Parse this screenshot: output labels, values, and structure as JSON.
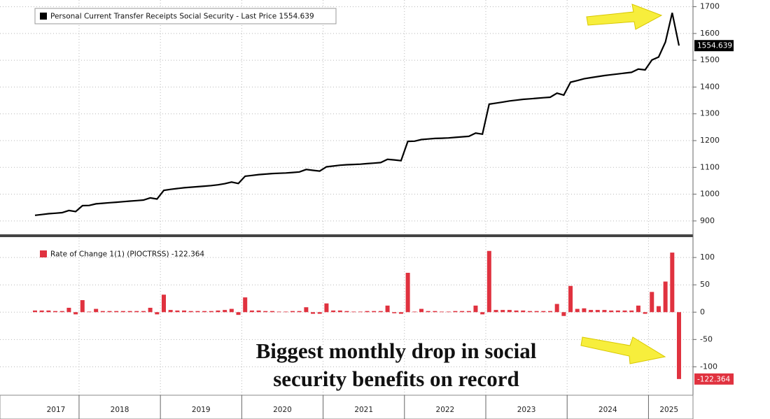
{
  "chart_data": [
    {
      "type": "line",
      "series": [
        {
          "name": "Personal Current Transfer Receipts Social Security - Last Price 1554.639",
          "color": "#000000",
          "values": [
            921,
            924,
            927,
            929,
            931,
            939,
            935,
            957,
            958,
            964,
            966,
            968,
            970,
            972,
            974,
            976,
            978,
            986,
            982,
            1014,
            1018,
            1021,
            1024,
            1026,
            1028,
            1030,
            1032,
            1035,
            1039,
            1045,
            1040,
            1067,
            1070,
            1073,
            1075,
            1077,
            1078,
            1079,
            1081,
            1083,
            1092,
            1089,
            1086,
            1102,
            1105,
            1108,
            1110,
            1111,
            1112,
            1114,
            1116,
            1118,
            1130,
            1128,
            1125,
            1197,
            1198,
            1204,
            1206,
            1208,
            1209,
            1210,
            1212,
            1214,
            1216,
            1228,
            1224,
            1336,
            1340,
            1344,
            1348,
            1351,
            1354,
            1356,
            1358,
            1360,
            1362,
            1377,
            1370,
            1418,
            1424,
            1431,
            1435,
            1439,
            1443,
            1446,
            1449,
            1452,
            1455,
            1467,
            1464,
            1501,
            1512,
            1568,
            1677,
            1554.639
          ]
        }
      ],
      "ylim": [
        850,
        1725
      ],
      "yticks": [
        900,
        1000,
        1100,
        1200,
        1300,
        1400,
        1500,
        1600,
        1700
      ],
      "grid": true
    },
    {
      "type": "bar",
      "series": [
        {
          "name": "Rate of Change 1(1) (PIOCTRSS) -122.364",
          "color": "#e0323f",
          "values": [
            3,
            3,
            3,
            2,
            2,
            8,
            -4,
            22,
            1,
            6,
            2,
            2,
            2,
            2,
            2,
            2,
            2,
            8,
            -4,
            32,
            4,
            3,
            3,
            2,
            2,
            2,
            2,
            3,
            4,
            6,
            -5,
            27,
            3,
            3,
            2,
            2,
            1,
            1,
            2,
            2,
            9,
            -3,
            -3,
            16,
            3,
            3,
            2,
            1,
            1,
            2,
            2,
            2,
            12,
            -2,
            -3,
            72,
            1,
            6,
            2,
            2,
            1,
            1,
            2,
            2,
            2,
            12,
            -4,
            112,
            4,
            4,
            4,
            3,
            3,
            2,
            2,
            2,
            2,
            15,
            -7,
            48,
            6,
            7,
            4,
            4,
            4,
            3,
            3,
            3,
            3,
            12,
            -3,
            37,
            11,
            56,
            109,
            -122.364
          ]
        }
      ],
      "ylim": [
        -152,
        136
      ],
      "yticks": [
        -100,
        -50,
        0,
        50,
        100
      ],
      "grid": true,
      "x_labels": [
        "2017",
        "2018",
        "2019",
        "2020",
        "2021",
        "2022",
        "2023",
        "2024",
        "2025"
      ],
      "annotation": [
        "Biggest monthly drop in social",
        "security benefits on record"
      ]
    }
  ]
}
